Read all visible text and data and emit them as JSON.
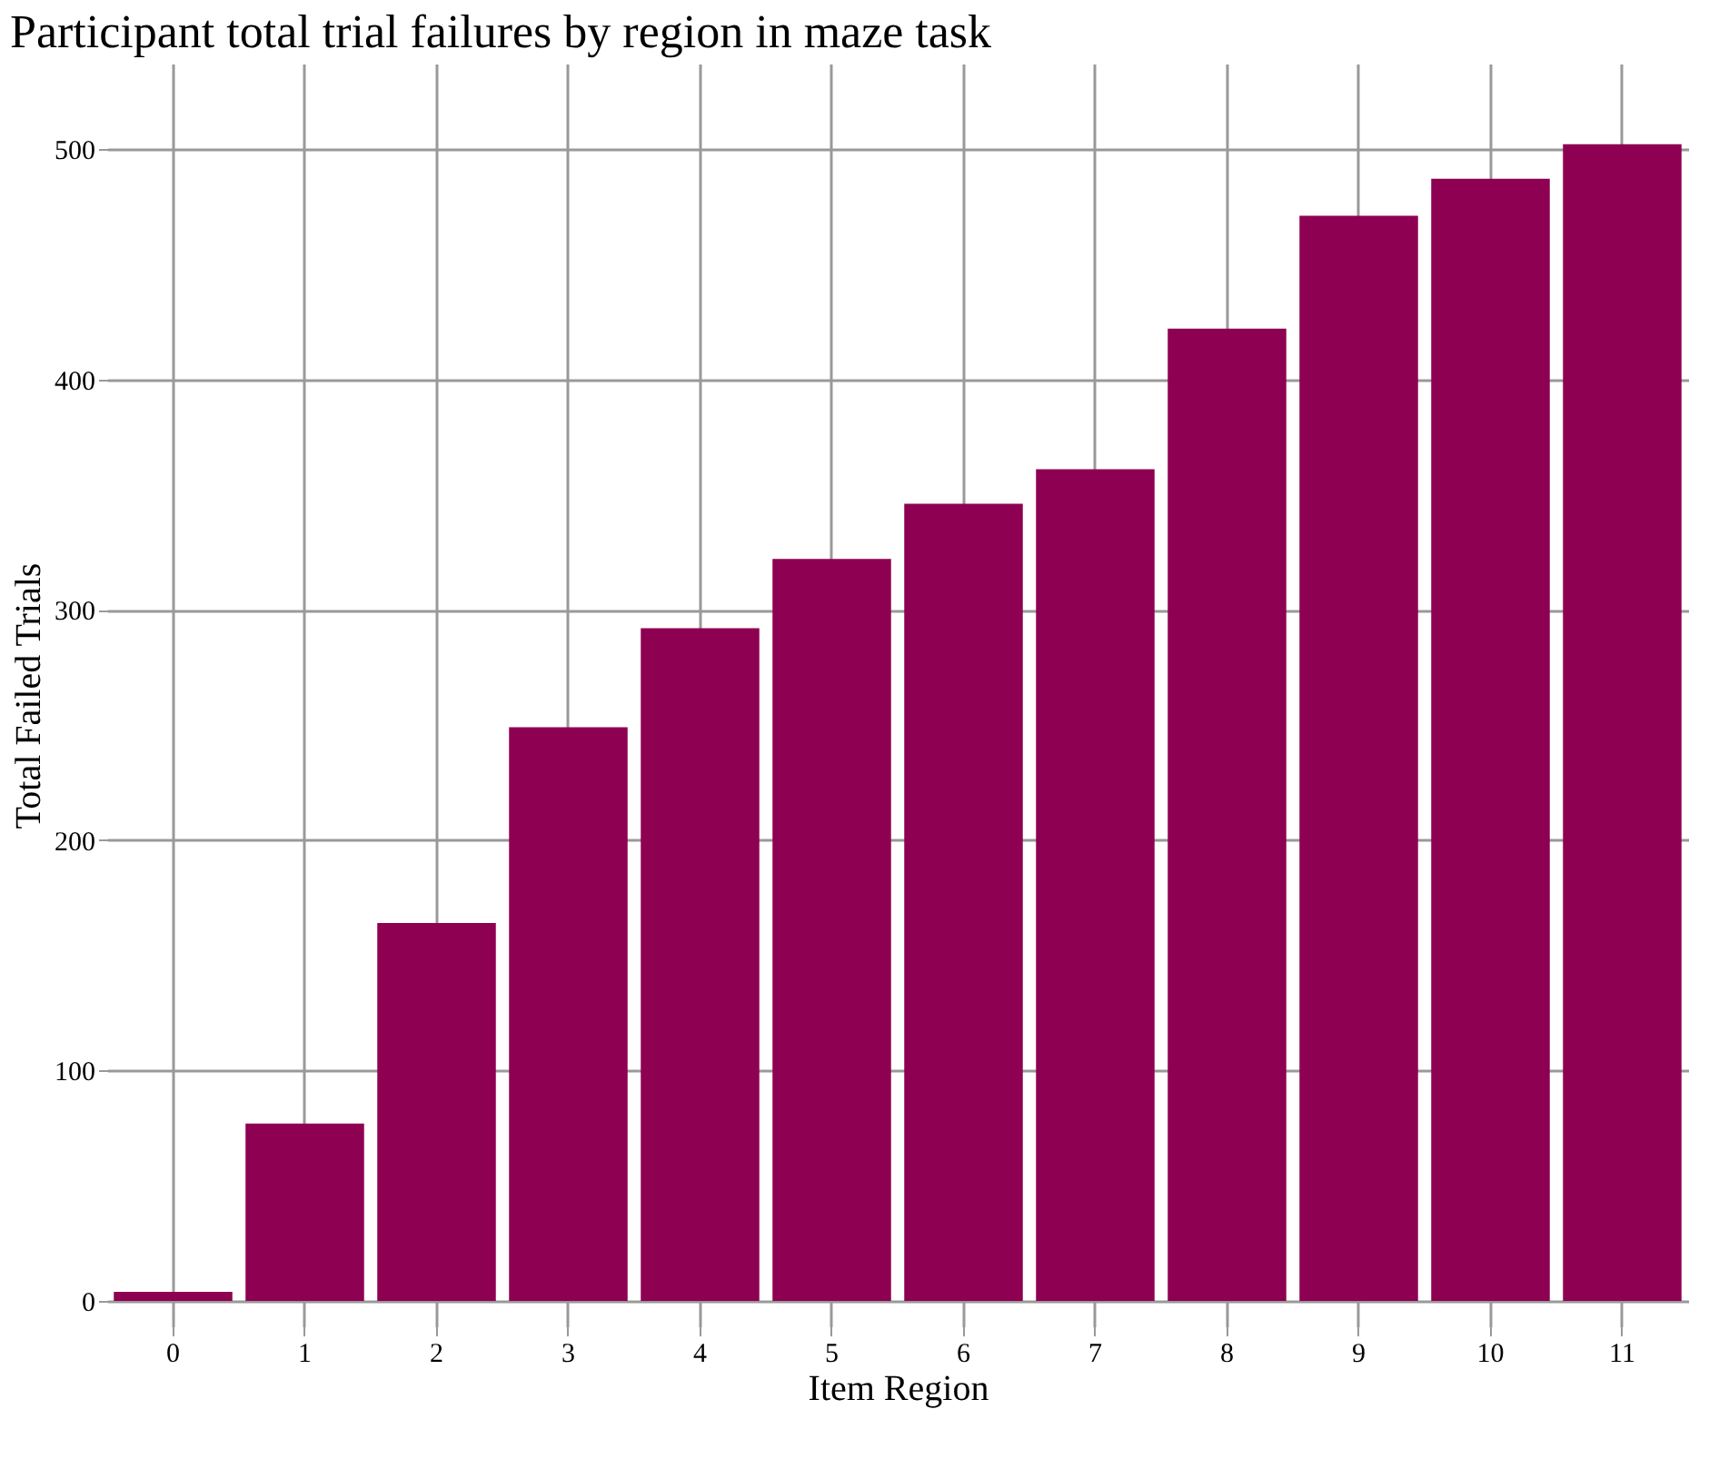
{
  "chart_data": {
    "type": "bar",
    "title": "Participant total trial failures by region in maze task",
    "xlabel": "Item Region",
    "ylabel": "Total Failed Trials",
    "categories": [
      "0",
      "1",
      "2",
      "3",
      "4",
      "5",
      "6",
      "7",
      "8",
      "9",
      "10",
      "11"
    ],
    "values": [
      4,
      77,
      164,
      249,
      292,
      322,
      346,
      361,
      422,
      471,
      487,
      502
    ],
    "color": "#8e0152",
    "ylim": [
      -11,
      537
    ],
    "yticks": [
      0,
      100,
      200,
      300,
      400,
      500
    ],
    "grid": true
  }
}
